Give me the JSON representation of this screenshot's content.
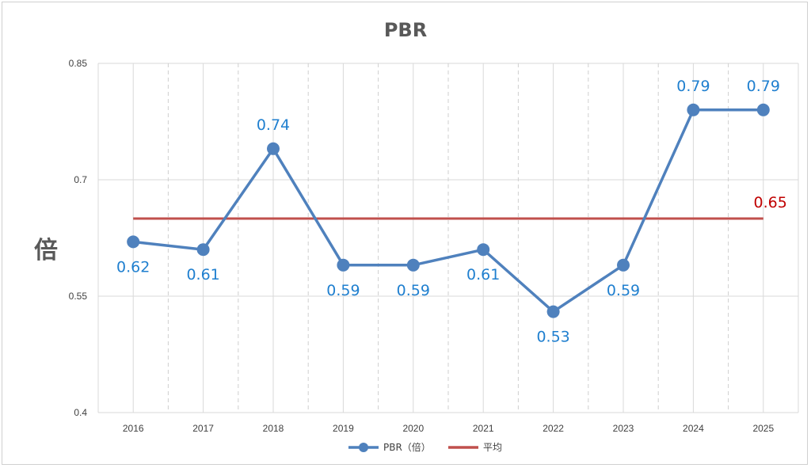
{
  "chart_data": {
    "type": "line",
    "title": "PBR",
    "ylabel": "倍",
    "xlabel": "",
    "categories": [
      "2016",
      "2017",
      "2018",
      "2019",
      "2020",
      "2021",
      "2022",
      "2023",
      "2024",
      "2025"
    ],
    "series": [
      {
        "name": "PBR（倍）",
        "values": [
          0.62,
          0.61,
          0.74,
          0.59,
          0.59,
          0.61,
          0.53,
          0.59,
          0.79,
          0.79
        ],
        "color": "#4f81bd",
        "marker": "circle"
      },
      {
        "name": "平均",
        "values": [
          0.65,
          0.65,
          0.65,
          0.65,
          0.65,
          0.65,
          0.65,
          0.65,
          0.65,
          0.65
        ],
        "color": "#c0504d",
        "marker": "none"
      }
    ],
    "data_labels": [
      "0.62",
      "0.61",
      "0.74",
      "0.59",
      "0.59",
      "0.61",
      "0.53",
      "0.59",
      "0.79",
      "0.79"
    ],
    "avg_label": "0.65",
    "yticks": [
      "0.4",
      "0.55",
      "0.7",
      "0.85"
    ],
    "ytick_values": [
      0.4,
      0.55,
      0.7,
      0.85
    ],
    "ylim": [
      0.4,
      0.85
    ],
    "grid": "vertical-dashed-and-horizontal",
    "legend": "bottom-center",
    "label_color": "#1f7fcf",
    "avg_label_color": "#c00000"
  }
}
